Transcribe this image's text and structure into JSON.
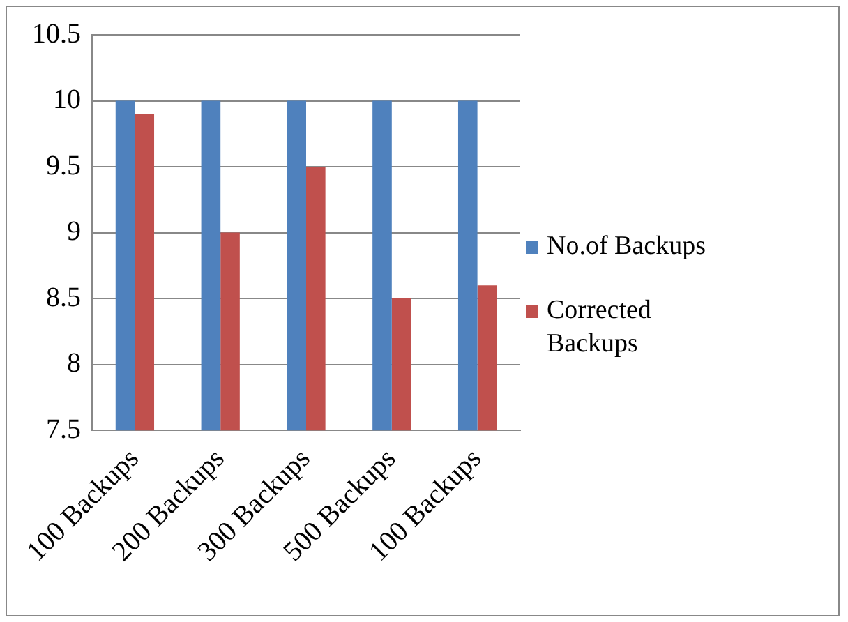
{
  "chart_data": {
    "type": "bar",
    "categories": [
      "100 Backups",
      "200 Backups",
      "300 Backups",
      "500 Backups",
      "100 Backups"
    ],
    "series": [
      {
        "name": "No.of Backups",
        "color": "#4f81bd",
        "values": [
          10,
          10,
          10,
          10,
          10
        ]
      },
      {
        "name": "Corrected Backups",
        "color": "#c0504d",
        "values": [
          9.9,
          9.0,
          9.5,
          8.5,
          8.6
        ]
      }
    ],
    "ylim": [
      7.5,
      10.5
    ],
    "yticks": [
      7.5,
      8,
      8.5,
      9,
      9.5,
      10,
      10.5
    ],
    "grid": "y",
    "legend": "right"
  }
}
